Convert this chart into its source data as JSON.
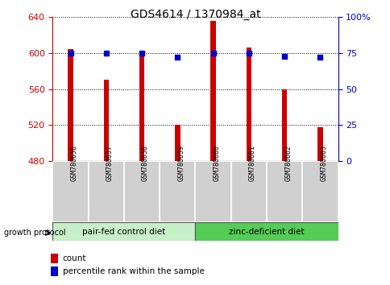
{
  "title": "GDS4614 / 1370984_at",
  "samples": [
    "GSM780656",
    "GSM780657",
    "GSM780658",
    "GSM780659",
    "GSM780660",
    "GSM780661",
    "GSM780662",
    "GSM780663"
  ],
  "count_values": [
    604,
    570,
    603,
    520,
    636,
    606,
    560,
    518
  ],
  "percentile_values": [
    75,
    75,
    75,
    72,
    75,
    75,
    73,
    72
  ],
  "ylim_left": [
    480,
    640
  ],
  "ylim_right": [
    0,
    100
  ],
  "yticks_left": [
    480,
    520,
    560,
    600,
    640
  ],
  "yticks_right": [
    0,
    25,
    50,
    75,
    100
  ],
  "ytick_labels_right": [
    "0",
    "25",
    "50",
    "75",
    "100%"
  ],
  "bar_color": "#cc0000",
  "dot_color": "#0000cc",
  "group1_label": "pair-fed control diet",
  "group2_label": "zinc-deficient diet",
  "group1_color": "#c8f0c8",
  "group2_color": "#55cc55",
  "legend_count_label": "count",
  "legend_percentile_label": "percentile rank within the sample",
  "growth_protocol_label": "growth protocol",
  "bar_width": 0.15,
  "left_axis_color": "#cc0000",
  "right_axis_color": "#0000cc",
  "label_box_color": "#d0d0d0",
  "grid_color": "#000000",
  "title_color": "#000000"
}
